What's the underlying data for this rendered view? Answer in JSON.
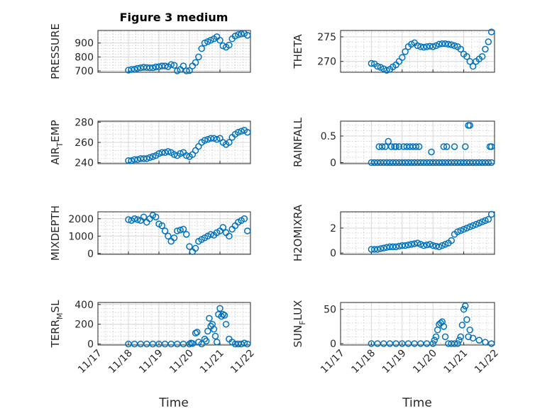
{
  "title": "Figure 3 medium",
  "xlabel": "Time",
  "colors": {
    "marker": "#0072bd",
    "axis": "#262626",
    "background": "#ffffff"
  },
  "chart_data": [
    {
      "type": "scatter",
      "name": "pressure",
      "ylabel": "PRESSURE",
      "ylim": [
        690,
        990
      ],
      "yticks": [
        700,
        800,
        900
      ],
      "xlim": [
        "11/17",
        "11/22"
      ],
      "xticks": [
        "11/17",
        "11/18",
        "11/19",
        "11/20",
        "11/21",
        "11/22"
      ],
      "show_xticklabels": false,
      "grid": "on",
      "series": [
        {
          "x": [
            18.0,
            18.1,
            18.2,
            18.3,
            18.4,
            18.5,
            18.6,
            18.7,
            18.8,
            18.9,
            19.0,
            19.1,
            19.2,
            19.3,
            19.4,
            19.5,
            19.6,
            19.7,
            19.8,
            19.9,
            20.0,
            20.1,
            20.2,
            20.3,
            20.4,
            20.5,
            20.6,
            20.7,
            20.8,
            20.9,
            21.0,
            21.1,
            21.2,
            21.3,
            21.4,
            21.5,
            21.6,
            21.7,
            21.8,
            21.9
          ],
          "y": [
            705,
            710,
            712,
            718,
            722,
            726,
            724,
            722,
            722,
            728,
            730,
            735,
            735,
            730,
            745,
            740,
            700,
            710,
            735,
            700,
            702,
            735,
            760,
            800,
            860,
            900,
            910,
            920,
            930,
            945,
            920,
            880,
            870,
            885,
            930,
            950,
            960,
            965,
            968,
            955
          ]
        }
      ]
    },
    {
      "type": "scatter",
      "name": "theta",
      "ylabel": "THETA",
      "ylim": [
        267.8,
        276.3
      ],
      "yticks": [
        270,
        275
      ],
      "xlim": [
        "11/17",
        "11/22"
      ],
      "xticks": [
        "11/17",
        "11/18",
        "11/19",
        "11/20",
        "11/21",
        "11/22"
      ],
      "show_xticklabels": false,
      "grid": "on",
      "series": [
        {
          "x": [
            18.0,
            18.1,
            18.2,
            18.3,
            18.4,
            18.5,
            18.6,
            18.7,
            18.8,
            18.9,
            19.0,
            19.1,
            19.2,
            19.3,
            19.4,
            19.5,
            19.6,
            19.7,
            19.8,
            19.9,
            20.0,
            20.1,
            20.2,
            20.3,
            20.4,
            20.5,
            20.6,
            20.7,
            20.8,
            20.9,
            21.0,
            21.1,
            21.2,
            21.3,
            21.4,
            21.5,
            21.6,
            21.7,
            21.8,
            21.9
          ],
          "y": [
            269.6,
            269.5,
            269.0,
            268.8,
            268.5,
            268.2,
            268.4,
            268.9,
            269.3,
            270.0,
            270.8,
            272.0,
            273.0,
            273.5,
            273.8,
            273.2,
            273.0,
            272.9,
            273.0,
            273.1,
            273.0,
            273.2,
            273.5,
            273.6,
            273.6,
            273.5,
            273.4,
            273.2,
            273.0,
            272.5,
            271.5,
            271.0,
            270.0,
            269.0,
            270.0,
            270.5,
            271.0,
            272.5,
            274.0,
            276.0
          ]
        }
      ]
    },
    {
      "type": "scatter",
      "name": "air_temp",
      "ylabel": "AIR_TEMP",
      "ylim": [
        239,
        281
      ],
      "yticks": [
        240,
        260,
        280
      ],
      "xlim": [
        "11/17",
        "11/22"
      ],
      "xticks": [
        "11/17",
        "11/18",
        "11/19",
        "11/20",
        "11/21",
        "11/22"
      ],
      "show_xticklabels": false,
      "grid": "on",
      "series": [
        {
          "x": [
            18.0,
            18.1,
            18.2,
            18.3,
            18.4,
            18.5,
            18.6,
            18.7,
            18.8,
            18.9,
            19.0,
            19.1,
            19.2,
            19.3,
            19.4,
            19.5,
            19.6,
            19.7,
            19.8,
            19.9,
            20.0,
            20.1,
            20.2,
            20.3,
            20.4,
            20.5,
            20.6,
            20.7,
            20.8,
            20.9,
            21.0,
            21.1,
            21.2,
            21.3,
            21.4,
            21.5,
            21.6,
            21.7,
            21.8,
            21.9
          ],
          "y": [
            242,
            242,
            243,
            243,
            244,
            244,
            244,
            245,
            246,
            247,
            249,
            250,
            250,
            251,
            250,
            248,
            247,
            249,
            250,
            247,
            246,
            248,
            252,
            256,
            260,
            262,
            263,
            264,
            264,
            263,
            264,
            260,
            258,
            260,
            265,
            268,
            270,
            271,
            272,
            270
          ]
        }
      ]
    },
    {
      "type": "scatter",
      "name": "rainfall",
      "ylabel": "RAINFALL",
      "ylim": [
        -0.02,
        0.78
      ],
      "yticks": [
        0,
        0.5
      ],
      "xlim": [
        "11/17",
        "11/22"
      ],
      "xticks": [
        "11/17",
        "11/18",
        "11/19",
        "11/20",
        "11/21",
        "11/22"
      ],
      "show_xticklabels": false,
      "grid": "on",
      "series": [
        {
          "x": [
            18.0,
            18.1,
            18.2,
            18.3,
            18.4,
            18.5,
            18.6,
            18.7,
            18.8,
            18.9,
            19.0,
            19.1,
            19.2,
            19.3,
            19.4,
            19.5,
            19.6,
            19.7,
            19.8,
            19.9,
            20.0,
            20.1,
            20.2,
            20.3,
            20.4,
            20.5,
            20.6,
            20.7,
            20.8,
            20.9,
            21.0,
            21.1,
            21.2,
            21.3,
            21.4,
            21.5,
            21.6,
            21.7,
            21.8,
            21.9,
            18.25,
            18.35,
            18.45,
            18.55,
            18.65,
            18.75,
            18.8,
            18.9,
            19.05,
            19.15,
            19.25,
            19.35,
            19.45,
            19.55,
            19.95,
            20.35,
            20.45,
            20.7,
            21.05,
            21.15,
            21.2,
            21.85,
            21.9
          ],
          "y": [
            0,
            0,
            0,
            0,
            0,
            0,
            0,
            0,
            0,
            0,
            0,
            0,
            0,
            0,
            0,
            0,
            0,
            0,
            0,
            0,
            0,
            0,
            0,
            0,
            0,
            0,
            0,
            0,
            0,
            0,
            0,
            0,
            0,
            0,
            0,
            0,
            0,
            0,
            0,
            0,
            0.3,
            0.3,
            0.3,
            0.4,
            0.3,
            0.3,
            0.3,
            0.3,
            0.3,
            0.3,
            0.3,
            0.3,
            0.3,
            0.3,
            0.2,
            0.3,
            0.3,
            0.3,
            0.3,
            0.7,
            0.7,
            0.3,
            0.3
          ]
        }
      ]
    },
    {
      "type": "scatter",
      "name": "mixdepth",
      "ylabel": "MIXDEPTH",
      "ylim": [
        -50,
        2400
      ],
      "yticks": [
        0,
        1000,
        2000
      ],
      "xlim": [
        "11/17",
        "11/22"
      ],
      "xticks": [
        "11/17",
        "11/18",
        "11/19",
        "11/20",
        "11/21",
        "11/22"
      ],
      "show_xticklabels": false,
      "grid": "on",
      "series": [
        {
          "x": [
            18.0,
            18.1,
            18.2,
            18.3,
            18.4,
            18.5,
            18.6,
            18.7,
            18.8,
            18.9,
            19.0,
            19.1,
            19.2,
            19.3,
            19.4,
            19.5,
            19.6,
            19.7,
            19.8,
            19.9,
            20.0,
            20.1,
            20.2,
            20.3,
            20.4,
            20.5,
            20.6,
            20.7,
            20.8,
            20.9,
            21.0,
            21.1,
            21.2,
            21.3,
            21.4,
            21.5,
            21.6,
            21.7,
            21.8,
            21.9
          ],
          "y": [
            1950,
            1900,
            2000,
            1950,
            1900,
            2100,
            1800,
            2000,
            2200,
            2100,
            1700,
            1600,
            1300,
            1000,
            700,
            900,
            1300,
            1350,
            1400,
            1100,
            400,
            100,
            300,
            700,
            800,
            900,
            1000,
            1100,
            1050,
            1200,
            1300,
            1500,
            1200,
            1000,
            1400,
            1600,
            1800,
            1900,
            2000,
            1300
          ]
        }
      ]
    },
    {
      "type": "scatter",
      "name": "h2omixra",
      "ylabel": "H2OMIXRA",
      "ylim": [
        -0.1,
        3.3
      ],
      "yticks": [
        0,
        2
      ],
      "xlim": [
        "11/17",
        "11/22"
      ],
      "xticks": [
        "11/17",
        "11/18",
        "11/19",
        "11/20",
        "11/21",
        "11/22"
      ],
      "show_xticklabels": false,
      "grid": "on",
      "series": [
        {
          "x": [
            18.0,
            18.1,
            18.2,
            18.3,
            18.4,
            18.5,
            18.6,
            18.7,
            18.8,
            18.9,
            19.0,
            19.1,
            19.2,
            19.3,
            19.4,
            19.5,
            19.6,
            19.7,
            19.8,
            19.9,
            20.0,
            20.1,
            20.2,
            20.3,
            20.4,
            20.5,
            20.6,
            20.7,
            20.8,
            20.9,
            21.0,
            21.1,
            21.2,
            21.3,
            21.4,
            21.5,
            21.6,
            21.7,
            21.8,
            21.9
          ],
          "y": [
            0.3,
            0.3,
            0.3,
            0.35,
            0.4,
            0.45,
            0.5,
            0.5,
            0.5,
            0.55,
            0.6,
            0.6,
            0.65,
            0.7,
            0.75,
            0.8,
            0.7,
            0.6,
            0.65,
            0.7,
            0.6,
            0.55,
            0.5,
            0.6,
            0.7,
            0.8,
            1.0,
            1.5,
            1.7,
            1.8,
            1.9,
            2.0,
            2.1,
            2.2,
            2.3,
            2.4,
            2.5,
            2.6,
            2.7,
            3.1
          ]
        }
      ]
    },
    {
      "type": "scatter",
      "name": "terr_msl",
      "ylabel": "TERR_MSL",
      "ylim": [
        -10,
        420
      ],
      "yticks": [
        0,
        200,
        400
      ],
      "xlim": [
        "11/17",
        "11/22"
      ],
      "xticks": [
        "11/17",
        "11/18",
        "11/19",
        "11/20",
        "11/21",
        "11/22"
      ],
      "show_xticklabels": true,
      "grid": "on",
      "series": [
        {
          "x": [
            18.0,
            18.2,
            18.4,
            18.6,
            18.8,
            19.0,
            19.2,
            19.4,
            19.6,
            19.8,
            20.0,
            20.05,
            20.1,
            20.2,
            20.25,
            20.3,
            20.4,
            20.5,
            20.55,
            20.6,
            20.65,
            20.7,
            20.75,
            20.8,
            20.85,
            20.9,
            20.95,
            21.0,
            21.05,
            21.1,
            21.15,
            21.2,
            21.3,
            21.4,
            21.5,
            21.6,
            21.7,
            21.8,
            21.9
          ],
          "y": [
            0,
            0,
            0,
            0,
            0,
            0,
            0,
            0,
            0,
            0,
            0,
            10,
            5,
            110,
            120,
            20,
            0,
            50,
            30,
            130,
            260,
            180,
            200,
            150,
            80,
            20,
            300,
            360,
            280,
            300,
            290,
            200,
            50,
            20,
            0,
            0,
            0,
            10,
            0
          ]
        }
      ]
    },
    {
      "type": "scatter",
      "name": "sun_flux",
      "ylabel": "SUN_FLUX",
      "ylim": [
        -2,
        60
      ],
      "yticks": [
        0,
        50
      ],
      "xlim": [
        "11/17",
        "11/22"
      ],
      "xticks": [
        "11/17",
        "11/18",
        "11/19",
        "11/20",
        "11/21",
        "11/22"
      ],
      "show_xticklabels": true,
      "grid": "on",
      "series": [
        {
          "x": [
            18.0,
            18.2,
            18.4,
            18.6,
            18.8,
            19.0,
            19.2,
            19.4,
            19.6,
            19.8,
            20.0,
            20.05,
            20.1,
            20.15,
            20.2,
            20.25,
            20.3,
            20.35,
            20.4,
            20.5,
            20.6,
            20.7,
            20.8,
            20.85,
            20.9,
            20.95,
            21.0,
            21.05,
            21.1,
            21.15,
            21.2,
            21.3,
            21.5,
            21.7,
            21.9
          ],
          "y": [
            0,
            0,
            0,
            0,
            0,
            0,
            0,
            0,
            0,
            0,
            0,
            5,
            10,
            20,
            28,
            30,
            32,
            25,
            10,
            0,
            0,
            0,
            0,
            5,
            10,
            27,
            50,
            55,
            35,
            10,
            20,
            8,
            5,
            2,
            0
          ]
        }
      ]
    }
  ]
}
